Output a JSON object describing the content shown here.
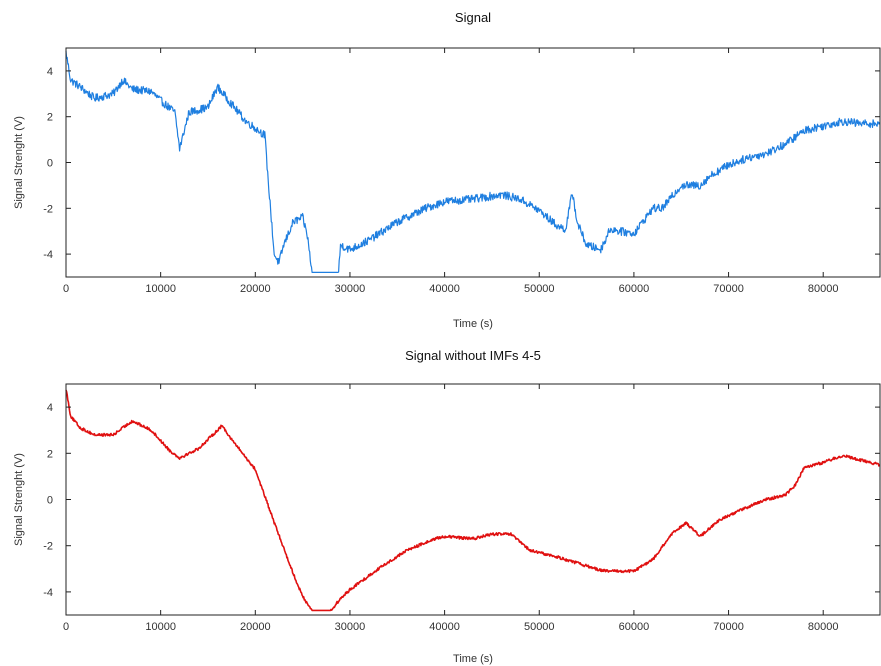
{
  "chart_data": [
    {
      "type": "line",
      "title": "Signal",
      "xlabel": "Time (s)",
      "ylabel": "Signal Strenght (V)",
      "xlim": [
        0,
        86000
      ],
      "ylim": [
        -5,
        5
      ],
      "xticks": [
        0,
        10000,
        20000,
        30000,
        40000,
        50000,
        60000,
        70000,
        80000
      ],
      "yticks": [
        -4,
        -2,
        0,
        2,
        4
      ],
      "grid": false,
      "legend": "none",
      "color": "#1f7fe0",
      "noise": 0.35,
      "x": [
        0,
        500,
        1500,
        3000,
        5000,
        6000,
        7000,
        9000,
        10000,
        11500,
        12000,
        13000,
        15000,
        16000,
        17000,
        19000,
        21000,
        21500,
        22000,
        22500,
        23000,
        24000,
        25000,
        25500,
        26000,
        28800,
        29000,
        30000,
        32000,
        35000,
        38000,
        40000,
        43000,
        46000,
        48000,
        50000,
        52000,
        52800,
        53500,
        54000,
        55000,
        56500,
        57500,
        58500,
        60000,
        62000,
        63000,
        65000,
        67000,
        68000,
        70000,
        72000,
        74000,
        76000,
        78000,
        80000,
        82000,
        84000,
        86000
      ],
      "y": [
        4.8,
        3.6,
        3.3,
        2.8,
        3.0,
        3.6,
        3.2,
        3.1,
        2.7,
        2.2,
        0.6,
        2.2,
        2.4,
        3.3,
        2.8,
        1.8,
        1.2,
        -1.5,
        -4.0,
        -4.4,
        -3.6,
        -2.6,
        -2.4,
        -3.2,
        -4.8,
        -4.8,
        -3.6,
        -3.8,
        -3.4,
        -2.6,
        -2.0,
        -1.7,
        -1.6,
        -1.4,
        -1.6,
        -2.1,
        -2.8,
        -2.9,
        -1.3,
        -2.6,
        -3.6,
        -3.8,
        -2.9,
        -3.0,
        -3.1,
        -2.0,
        -2.0,
        -1.0,
        -1.0,
        -0.6,
        -0.1,
        0.2,
        0.4,
        0.8,
        1.4,
        1.6,
        1.8,
        1.7,
        1.7
      ]
    },
    {
      "type": "line",
      "title": "Signal without IMFs 4-5",
      "xlabel": "Time (s)",
      "ylabel": "Signal Strenght (V)",
      "xlim": [
        0,
        86000
      ],
      "ylim": [
        -5,
        5
      ],
      "xticks": [
        0,
        10000,
        20000,
        30000,
        40000,
        50000,
        60000,
        70000,
        80000
      ],
      "yticks": [
        -4,
        -2,
        0,
        2,
        4
      ],
      "grid": false,
      "legend": "none",
      "color": "#e01010",
      "noise": 0.12,
      "x": [
        0,
        500,
        1500,
        3000,
        5000,
        7000,
        9000,
        11000,
        12000,
        14000,
        16500,
        17500,
        20000,
        22000,
        24000,
        25000,
        26000,
        28000,
        29000,
        30000,
        33000,
        36000,
        39000,
        40000,
        43000,
        45000,
        47000,
        49000,
        52000,
        56000,
        57000,
        60000,
        62000,
        64000,
        65500,
        67000,
        69000,
        71000,
        74000,
        76000,
        77000,
        78000,
        80000,
        82000,
        84000,
        86000
      ],
      "y": [
        4.8,
        3.6,
        3.1,
        2.8,
        2.8,
        3.4,
        3.0,
        2.1,
        1.8,
        2.2,
        3.2,
        2.6,
        1.3,
        -1.0,
        -3.2,
        -4.2,
        -4.8,
        -4.8,
        -4.3,
        -3.9,
        -3.0,
        -2.2,
        -1.7,
        -1.6,
        -1.7,
        -1.5,
        -1.5,
        -2.2,
        -2.5,
        -3.0,
        -3.1,
        -3.1,
        -2.6,
        -1.5,
        -1.0,
        -1.6,
        -0.9,
        -0.5,
        0.0,
        0.2,
        0.6,
        1.4,
        1.6,
        1.9,
        1.7,
        1.5
      ]
    }
  ]
}
